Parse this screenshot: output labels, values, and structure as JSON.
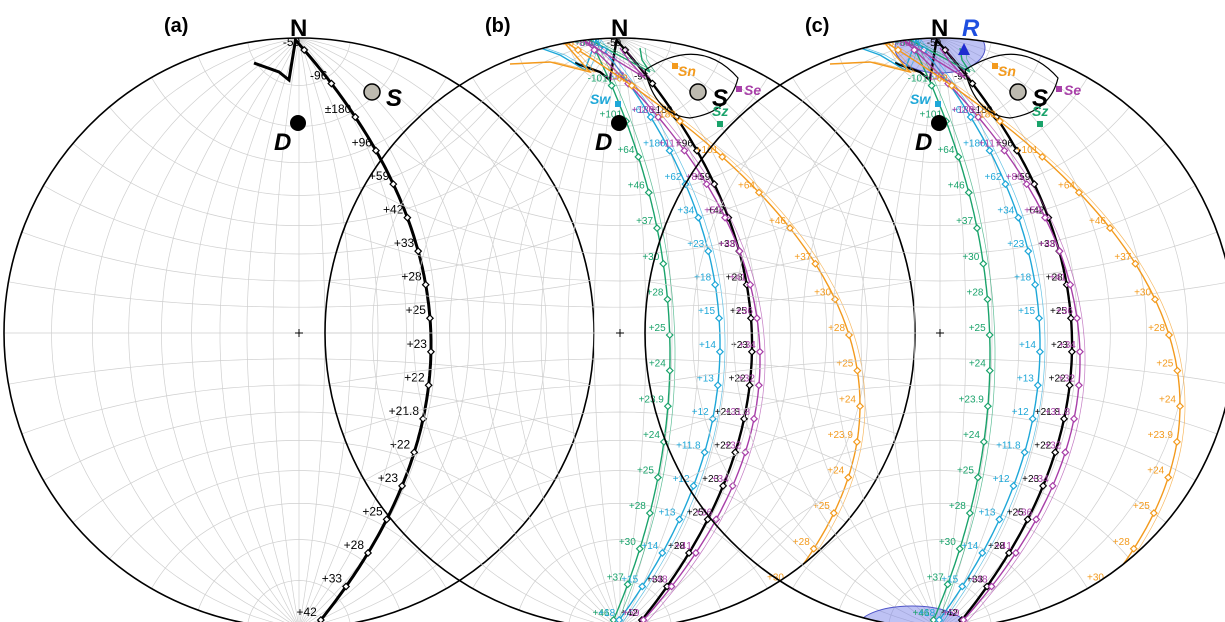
{
  "panels": [
    {
      "label": "(a)",
      "north": "N",
      "D": "D",
      "S": "S",
      "curves": [
        {
          "name": "black",
          "color": "#000000",
          "labels": [
            "-59",
            "-96",
            "±180",
            "+96",
            "+59",
            "+42",
            "+33",
            "+28",
            "+25",
            "+23",
            "+22",
            "+21.8",
            "+22",
            "+23",
            "+25",
            "+28",
            "+33",
            "+42"
          ]
        }
      ]
    },
    {
      "label": "(b)",
      "north": "N",
      "D": "D",
      "S": "S",
      "Sw": "Sw",
      "Sn": "Sn",
      "Se": "Se",
      "Sz": "Sz",
      "curves": [
        {
          "name": "black",
          "color": "#000000",
          "labels": [
            "-59",
            "-96",
            "±180",
            "+96",
            "+59",
            "+42",
            "+33",
            "+28",
            "+25",
            "+23",
            "+22",
            "+21.8",
            "+22",
            "+23",
            "+25",
            "+28",
            "+33",
            "+42"
          ]
        },
        {
          "name": "green",
          "color": "#1aa36b",
          "labels": [
            "+64",
            "-101",
            "+101",
            "+64",
            "+46",
            "+37",
            "+30",
            "+28",
            "+25",
            "+24",
            "+23.9",
            "+24",
            "+25",
            "+28",
            "+30",
            "+37",
            "+46"
          ]
        },
        {
          "name": "cyan",
          "color": "#1ea7d8",
          "labels": [
            "-23",
            "-34",
            "-62",
            "+180",
            "+62",
            "+34",
            "+23",
            "+18",
            "+15",
            "+14",
            "+13",
            "+12",
            "+11.8",
            "+12",
            "+13",
            "+14",
            "+15",
            "+18"
          ]
        },
        {
          "name": "magenta",
          "color": "#a83fa8",
          "labels": [
            "-80",
            "-117",
            "+180",
            "+117",
            "+80",
            "+59",
            "+48",
            "+41",
            "+36",
            "+34",
            "+32",
            "+31.8",
            "+32",
            "+34",
            "+36",
            "+41",
            "+48",
            "+59"
          ]
        },
        {
          "name": "orange",
          "color": "#f39a1d",
          "labels": [
            "-46",
            "-62",
            "-180",
            "+101",
            "+64",
            "+46",
            "+37",
            "+30",
            "+28",
            "+25",
            "+24",
            "+23.9",
            "+24",
            "+25",
            "+28",
            "+30",
            "+37"
          ]
        }
      ]
    },
    {
      "label": "(c)",
      "north": "N",
      "D": "D",
      "S": "S",
      "R": "R",
      "Sw": "Sw",
      "Sn": "Sn",
      "Se": "Se",
      "Sz": "Sz",
      "curves": [
        {
          "name": "black",
          "color": "#000000",
          "labels": [
            "-59",
            "-96",
            "±180",
            "+96",
            "+59",
            "+42",
            "+33",
            "+28",
            "+25",
            "+23",
            "+22",
            "+21.8",
            "+22",
            "+23",
            "+25",
            "+28",
            "+33",
            "+42"
          ]
        },
        {
          "name": "green",
          "color": "#1aa36b",
          "labels": [
            "+64",
            "-101",
            "+101",
            "+64",
            "+46",
            "+37",
            "+30",
            "+28",
            "+25",
            "+24",
            "+23.9",
            "+24",
            "+25",
            "+28",
            "+30",
            "+37",
            "+46"
          ]
        },
        {
          "name": "cyan",
          "color": "#1ea7d8",
          "labels": [
            "-23",
            "-34",
            "-62",
            "+180",
            "+62",
            "+34",
            "+23",
            "+18",
            "+15",
            "+14",
            "+13",
            "+12",
            "+11.8",
            "+12",
            "+13",
            "+14",
            "+15",
            "+18"
          ]
        },
        {
          "name": "magenta",
          "color": "#a83fa8",
          "labels": [
            "-80",
            "-117",
            "+180",
            "+117",
            "+80",
            "+59",
            "+48",
            "+41",
            "+36",
            "+34",
            "+32",
            "+31.8",
            "+32",
            "+34",
            "+36",
            "+41",
            "+48",
            "+59"
          ]
        },
        {
          "name": "orange",
          "color": "#f39a1d",
          "labels": [
            "-46",
            "-62",
            "-180",
            "+101",
            "+64",
            "+46",
            "+37",
            "+30",
            "+28",
            "+25",
            "+24",
            "+23.9",
            "+24",
            "+25",
            "+28",
            "+30",
            "+37"
          ]
        }
      ]
    }
  ],
  "colors": {
    "grid": "#cfcfcf",
    "S_fill": "#bdbab0",
    "R_fill": "#6f78e6",
    "R_label": "#1f4fe0",
    "Sw": "#1ea7d8",
    "Sn": "#f39a1d",
    "Se": "#a83fa8",
    "Sz": "#1aa36b"
  }
}
